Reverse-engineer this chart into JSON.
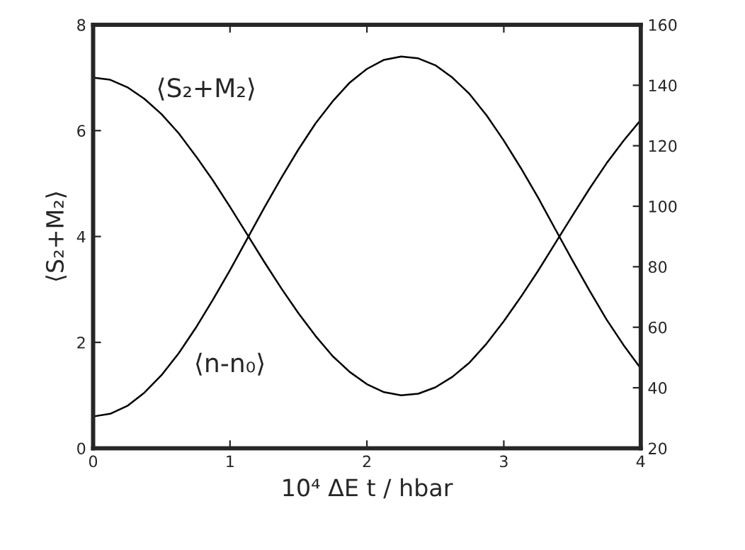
{
  "chart_data": {
    "type": "line",
    "xlabel": "10⁴ ΔE t / hbar",
    "ylabel": "⟨S₂+M₂⟩",
    "x": [
      0,
      0.125,
      0.25,
      0.375,
      0.5,
      0.625,
      0.75,
      0.875,
      1.0,
      1.125,
      1.25,
      1.375,
      1.5,
      1.625,
      1.75,
      1.875,
      2.0,
      2.125,
      2.25,
      2.375,
      2.5,
      2.625,
      2.75,
      2.875,
      3.0,
      3.125,
      3.25,
      3.375,
      3.5,
      3.625,
      3.75,
      3.875,
      4.0
    ],
    "series": [
      {
        "name": "⟨S₂+M₂⟩",
        "color": "#000000",
        "values": [
          7.0,
          6.96,
          6.82,
          6.6,
          6.31,
          5.95,
          5.52,
          5.06,
          4.56,
          4.04,
          3.52,
          3.02,
          2.55,
          2.12,
          1.74,
          1.44,
          1.21,
          1.06,
          1.0,
          1.03,
          1.15,
          1.35,
          1.62,
          1.98,
          2.4,
          2.86,
          3.35,
          3.87,
          4.39,
          4.9,
          5.38,
          5.81,
          6.2
        ]
      },
      {
        "name": "⟨n-n₀⟩",
        "color": "#000000",
        "axis": "y2",
        "values": [
          30.5,
          31.4,
          34.0,
          38.4,
          44.2,
          51.4,
          59.8,
          69.1,
          78.9,
          89.2,
          99.5,
          109.4,
          118.8,
          127.4,
          134.7,
          140.9,
          145.4,
          148.4,
          149.5,
          148.9,
          146.6,
          142.5,
          137.1,
          130.0,
          121.7,
          112.6,
          102.9,
          92.5,
          82.2,
          72.2,
          62.6,
          54.1,
          46.4
        ]
      }
    ],
    "xlim": [
      0,
      4
    ],
    "xticks": [
      0,
      1,
      2,
      3,
      4
    ],
    "ylim": [
      0,
      8
    ],
    "yticks": [
      0,
      2,
      4,
      6,
      8
    ],
    "y2lim": [
      20,
      160
    ],
    "y2ticks": [
      20,
      40,
      60,
      80,
      100,
      120,
      140,
      160
    ],
    "grid": false,
    "legend": false,
    "marker": "none",
    "line_style": "solid"
  }
}
